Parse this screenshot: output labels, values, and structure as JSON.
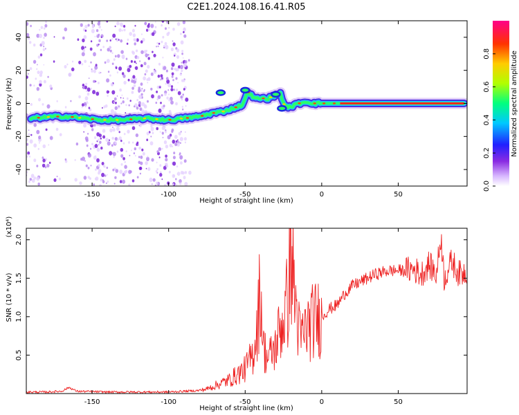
{
  "title": "C2E1.2024.108.16.41.R05",
  "chart_data": [
    {
      "type": "heatmap",
      "xlabel": "Height of straight line (km)",
      "ylabel": "Frequency (Hz)",
      "xlim": [
        -193,
        95
      ],
      "ylim": [
        -50,
        50
      ],
      "xticks": [
        -150,
        -100,
        -50,
        0,
        50
      ],
      "yticks": [
        -40,
        -20,
        0,
        20,
        40
      ],
      "colorbar": {
        "label": "Normalized spectral amplitude",
        "range": [
          0,
          1
        ],
        "ticks": [
          0.0,
          0.2,
          0.4,
          0.6,
          0.8
        ]
      },
      "ridge": {
        "x": [
          -190,
          -175,
          -165,
          -155,
          -145,
          -130,
          -115,
          -100,
          -90,
          -80,
          -72,
          -65,
          -58,
          -52,
          -48,
          -44,
          -40,
          -35,
          -30,
          -27,
          -24,
          -20,
          -15,
          -10,
          -5,
          0,
          5,
          10,
          20,
          40,
          60,
          80,
          93
        ],
        "freq": [
          -9,
          -8,
          -8,
          -9,
          -10,
          -10,
          -9,
          -10,
          -9,
          -8,
          -6,
          -5,
          -3,
          -1,
          7,
          3,
          3,
          3,
          5,
          6,
          -2,
          -2,
          0,
          1,
          0,
          0,
          0,
          0,
          0,
          0,
          0,
          0,
          0
        ]
      }
    },
    {
      "type": "line",
      "xlabel": "Height of straight line (km)",
      "ylabel": "SNR (10 * v/v)",
      "yscale_label": "(x10⁴)",
      "xlim": [
        -193,
        95
      ],
      "ylim": [
        0,
        2.15
      ],
      "xticks": [
        -150,
        -100,
        -50,
        0,
        50
      ],
      "yticks": [
        0.5,
        1.0,
        1.5,
        2.0
      ],
      "series": [
        {
          "color": "#ee2222",
          "x": [
            -193,
            -180,
            -170,
            -165,
            -160,
            -140,
            -120,
            -100,
            -90,
            -80,
            -75,
            -70,
            -65,
            -60,
            -55,
            -50,
            -45,
            -42,
            -40,
            -38,
            -35,
            -32,
            -30,
            -28,
            -25,
            -22,
            -20,
            -18,
            -16,
            -14,
            -10,
            -5,
            0,
            5,
            10,
            15,
            20,
            25,
            30,
            35,
            40,
            45,
            50,
            55,
            60,
            65,
            70,
            75,
            78,
            80,
            85,
            90,
            95
          ],
          "values": [
            0.02,
            0.02,
            0.03,
            0.08,
            0.03,
            0.02,
            0.02,
            0.02,
            0.03,
            0.04,
            0.06,
            0.1,
            0.14,
            0.18,
            0.25,
            0.32,
            0.5,
            0.9,
            1.4,
            0.6,
            0.45,
            0.55,
            0.6,
            0.8,
            0.95,
            1.25,
            1.9,
            1.35,
            1.0,
            0.7,
            0.85,
            0.95,
            1.0,
            1.1,
            1.15,
            1.3,
            1.4,
            1.45,
            1.5,
            1.55,
            1.58,
            1.6,
            1.6,
            1.6,
            1.62,
            1.55,
            1.68,
            1.55,
            2.05,
            1.5,
            1.72,
            1.55,
            1.6
          ]
        }
      ]
    }
  ]
}
